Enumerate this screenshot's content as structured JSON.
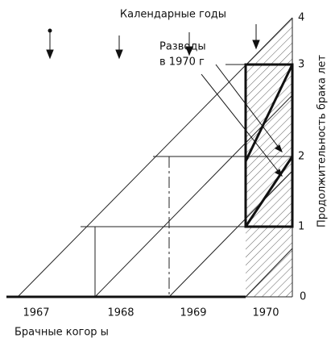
{
  "title": "Календарные годы",
  "y_axis_label": "Продолжительность брака лет",
  "x_axis_label": "Брачные когор ы",
  "annotation": [
    "Разводы",
    "в 1970 г"
  ],
  "x_labels": [
    "1967",
    "1968",
    "1969",
    "1970"
  ],
  "y_labels": [
    "0",
    "1",
    "2",
    "3",
    "4"
  ]
}
